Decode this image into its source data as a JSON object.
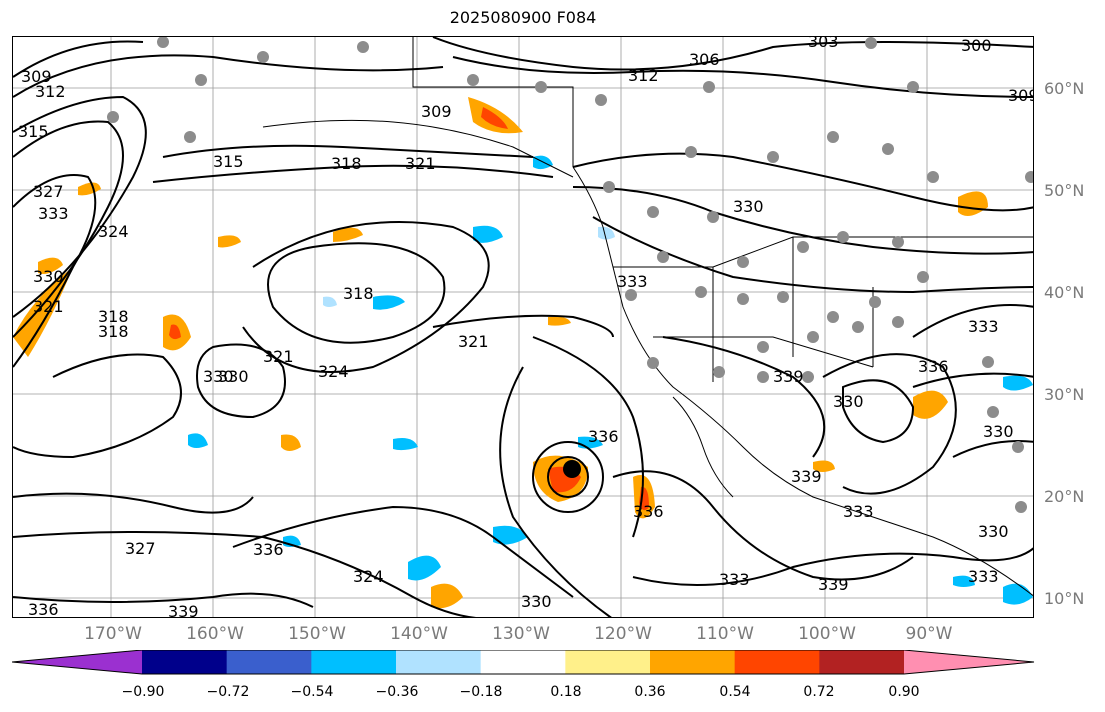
{
  "title": "2025080900 F084",
  "lat_labels": [
    "60°N",
    "50°N",
    "40°N",
    "30°N",
    "20°N",
    "10°N"
  ],
  "lon_labels": [
    "170°W",
    "160°W",
    "150°W",
    "140°W",
    "130°W",
    "120°W",
    "110°W",
    "100°W",
    "90°W"
  ],
  "contour_labels": [
    "309",
    "312",
    "315",
    "327",
    "333",
    "330",
    "324",
    "321",
    "318",
    "315",
    "318",
    "321",
    "309",
    "312",
    "306",
    "303",
    "300",
    "309",
    "330",
    "333",
    "318",
    "321",
    "324",
    "321",
    "330",
    "336",
    "336",
    "339",
    "339",
    "333",
    "330",
    "327",
    "336",
    "324",
    "330",
    "339",
    "336",
    "333",
    "336",
    "333",
    "330",
    "330",
    "330",
    "318",
    "339",
    "333"
  ],
  "colorbar": {
    "ticks": [
      "−0.90",
      "−0.72",
      "−0.54",
      "−0.36",
      "−0.18",
      "0.18",
      "0.36",
      "0.54",
      "0.72",
      "0.90"
    ],
    "colors": [
      "#9b30d0",
      "#00008b",
      "#3a5fcd",
      "#00bfff",
      "#b0e2ff",
      "#ffffff",
      "#fff08a",
      "#ffa500",
      "#ff4500",
      "#b22222",
      "#ff8fb1"
    ]
  },
  "colors": {
    "land_outline": "#000000",
    "station_dot": "#8c8c8c",
    "grid": "#9a9a9a"
  }
}
